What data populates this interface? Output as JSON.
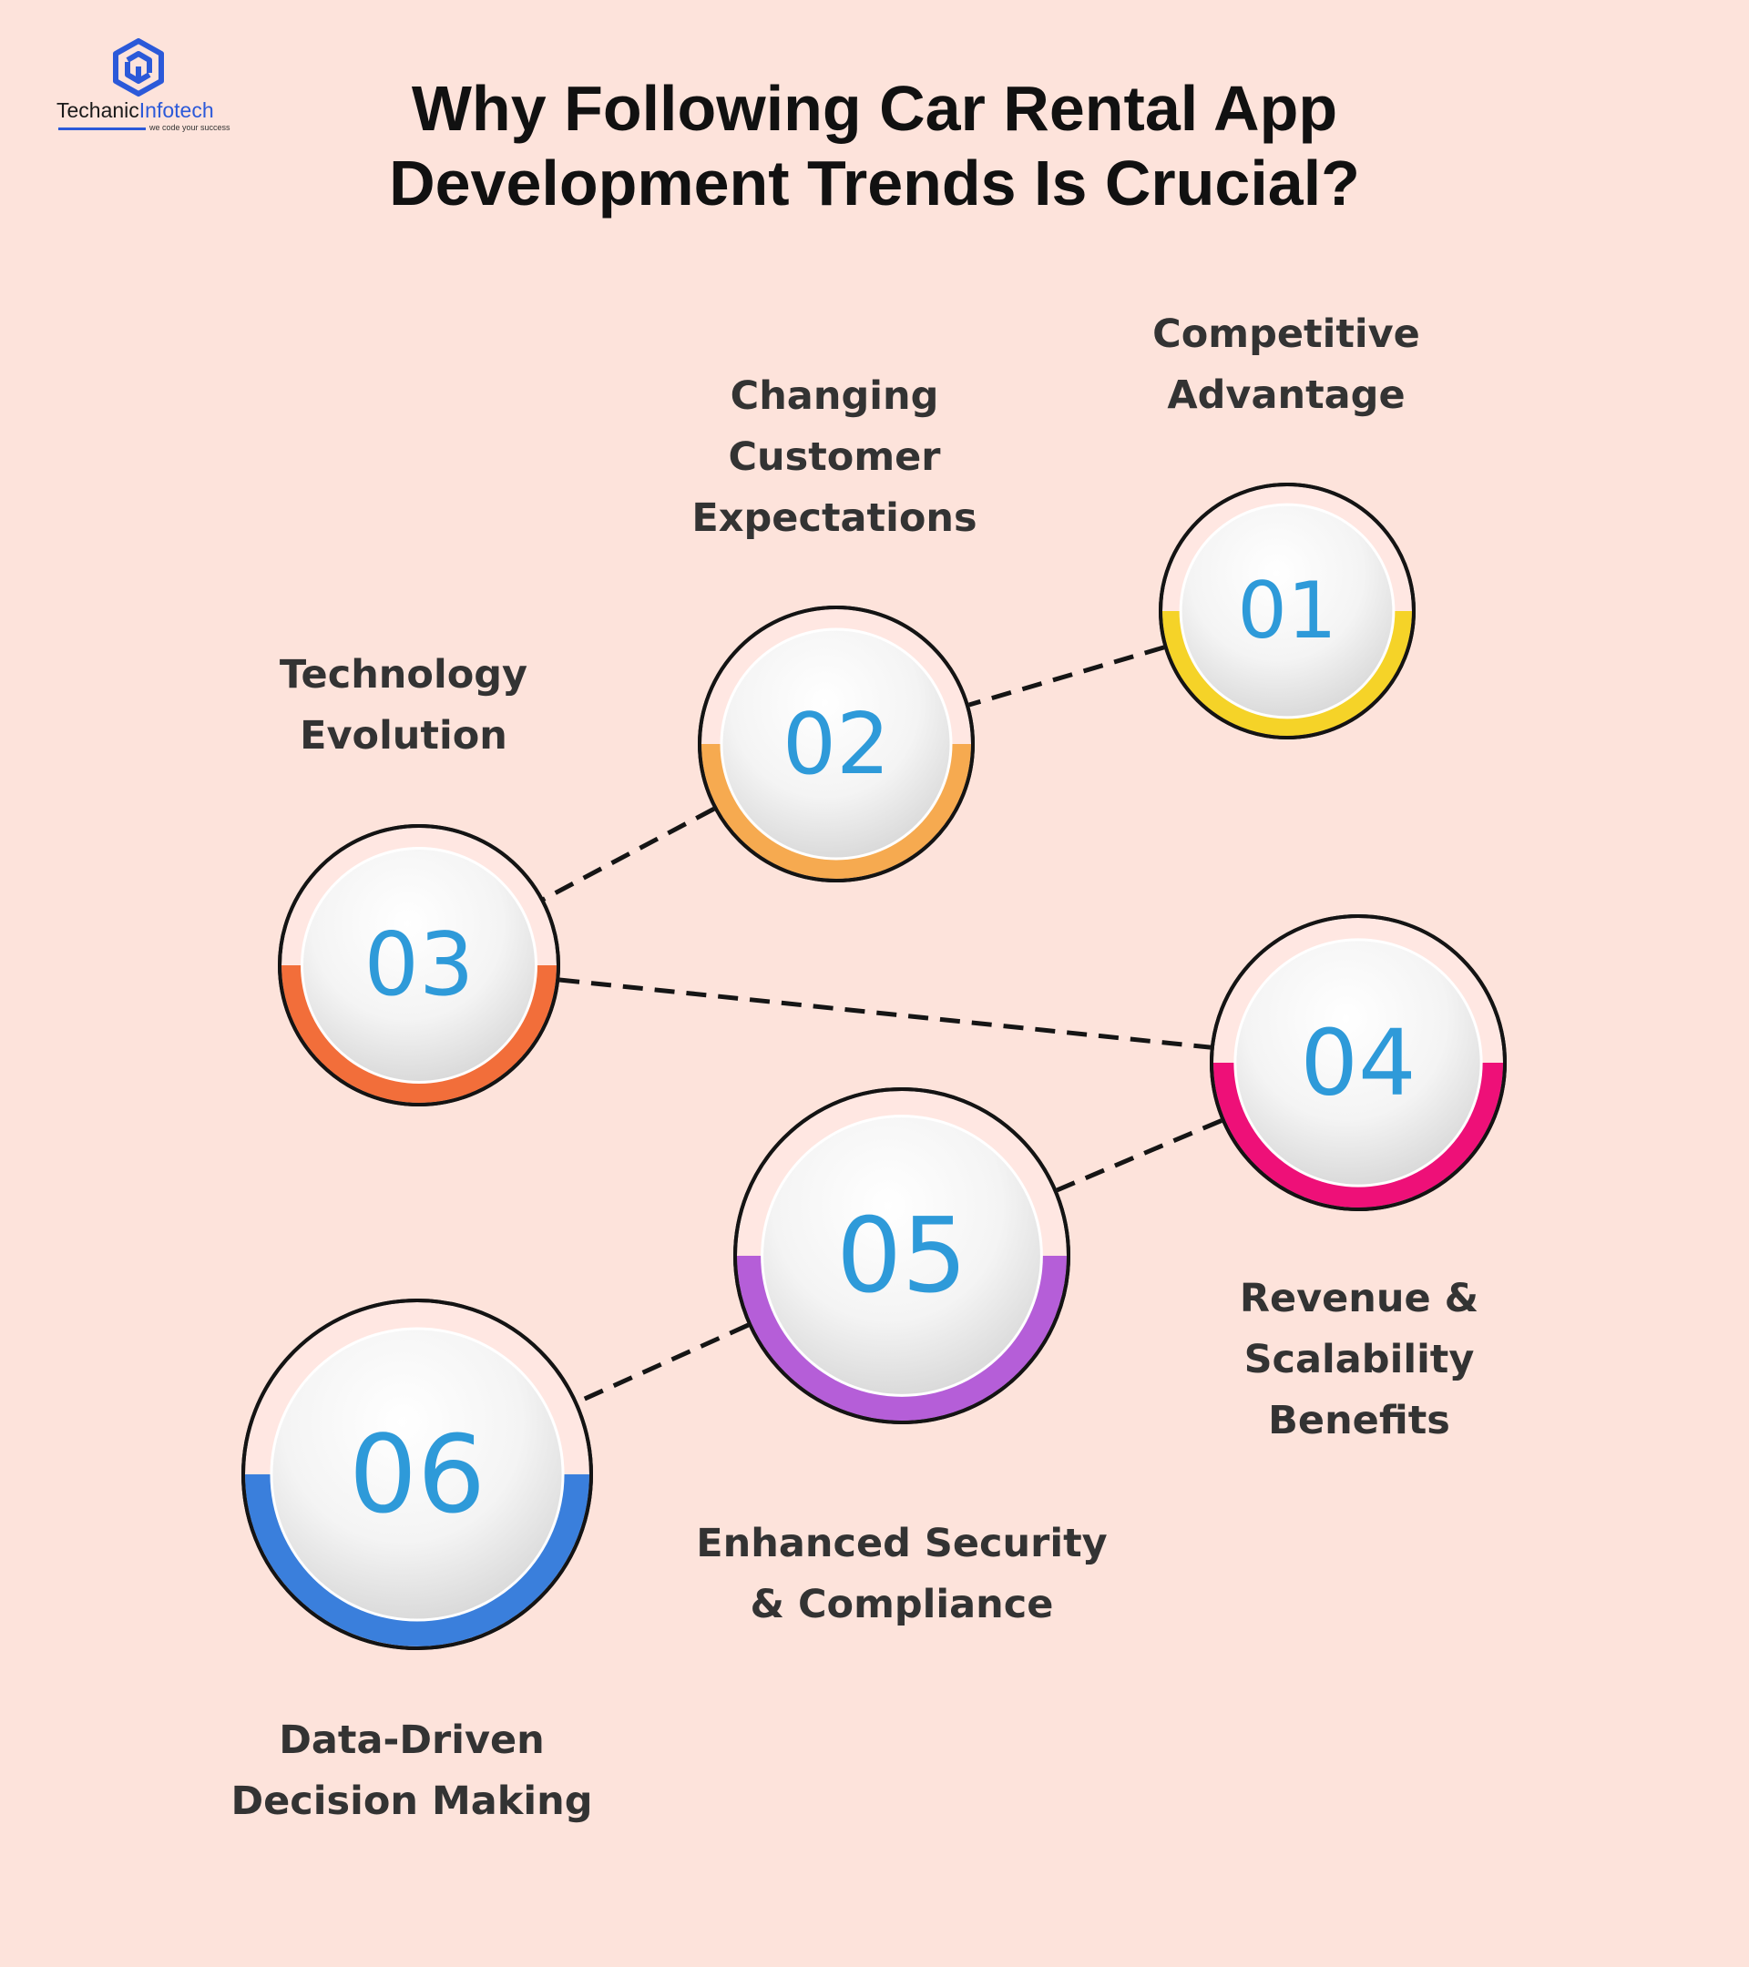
{
  "logo": {
    "name_part1": "Techanic",
    "name_part2": "Infotech",
    "tagline": "we code your success",
    "icon": "hexagon-cube-logo-icon",
    "color": "#2b59d9"
  },
  "title": {
    "line1": "Why Following Car Rental App",
    "line2": "Development Trends Is Crucial?"
  },
  "number_color": "#2e9ad9",
  "steps": [
    {
      "number": "01",
      "label_lines": [
        "Competitive",
        "Advantage"
      ],
      "color": "#f5d328"
    },
    {
      "number": "02",
      "label_lines": [
        "Changing",
        "Customer",
        "Expectations"
      ],
      "color": "#f6aa50"
    },
    {
      "number": "03",
      "label_lines": [
        "Technology",
        "Evolution"
      ],
      "color": "#f26e3a"
    },
    {
      "number": "04",
      "label_lines": [
        "Revenue &",
        "Scalability",
        "Benefits"
      ],
      "color": "#ee1078"
    },
    {
      "number": "05",
      "label_lines": [
        "Enhanced Security",
        "& Compliance"
      ],
      "color": "#b55ed8"
    },
    {
      "number": "06",
      "label_lines": [
        "Data-Driven",
        "Decision Making"
      ],
      "color": "#3a7fdc"
    }
  ]
}
